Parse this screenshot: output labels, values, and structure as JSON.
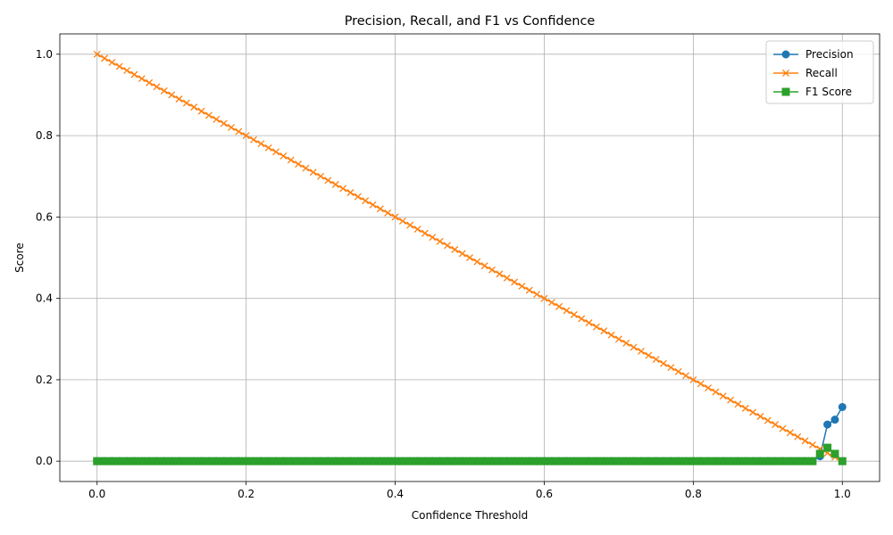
{
  "chart_data": {
    "type": "line",
    "title": "Precision, Recall, and F1 vs Confidence",
    "xlabel": "Confidence Threshold",
    "ylabel": "Score",
    "xlim": [
      -0.05,
      1.05
    ],
    "ylim": [
      -0.05,
      1.05
    ],
    "xticks": [
      0.0,
      0.2,
      0.4,
      0.6,
      0.8,
      1.0
    ],
    "xtick_labels": [
      "0.0",
      "0.2",
      "0.4",
      "0.6",
      "0.8",
      "1.0"
    ],
    "yticks": [
      0.0,
      0.2,
      0.4,
      0.6,
      0.8,
      1.0
    ],
    "ytick_labels": [
      "0.0",
      "0.2",
      "0.4",
      "0.6",
      "0.8",
      "1.0"
    ],
    "grid": true,
    "legend_position": "top-right",
    "x": {
      "start": 0.0,
      "stop": 1.0,
      "step": 0.01
    },
    "series": [
      {
        "name": "Precision",
        "color": "#1f77b4",
        "marker": "circle",
        "values_rule": "0 for x <= 0.96",
        "tail": {
          "0.97": 0.012,
          "0.98": 0.09,
          "0.99": 0.102,
          "1.00": 0.133
        }
      },
      {
        "name": "Recall",
        "color": "#ff7f0e",
        "marker": "x",
        "values_rule": "1 - x"
      },
      {
        "name": "F1 Score",
        "color": "#2ca02c",
        "marker": "square",
        "values_rule": "0 for x <= 0.96",
        "tail": {
          "0.97": 0.018,
          "0.98": 0.033,
          "0.99": 0.018,
          "1.00": 0.0
        }
      }
    ]
  }
}
